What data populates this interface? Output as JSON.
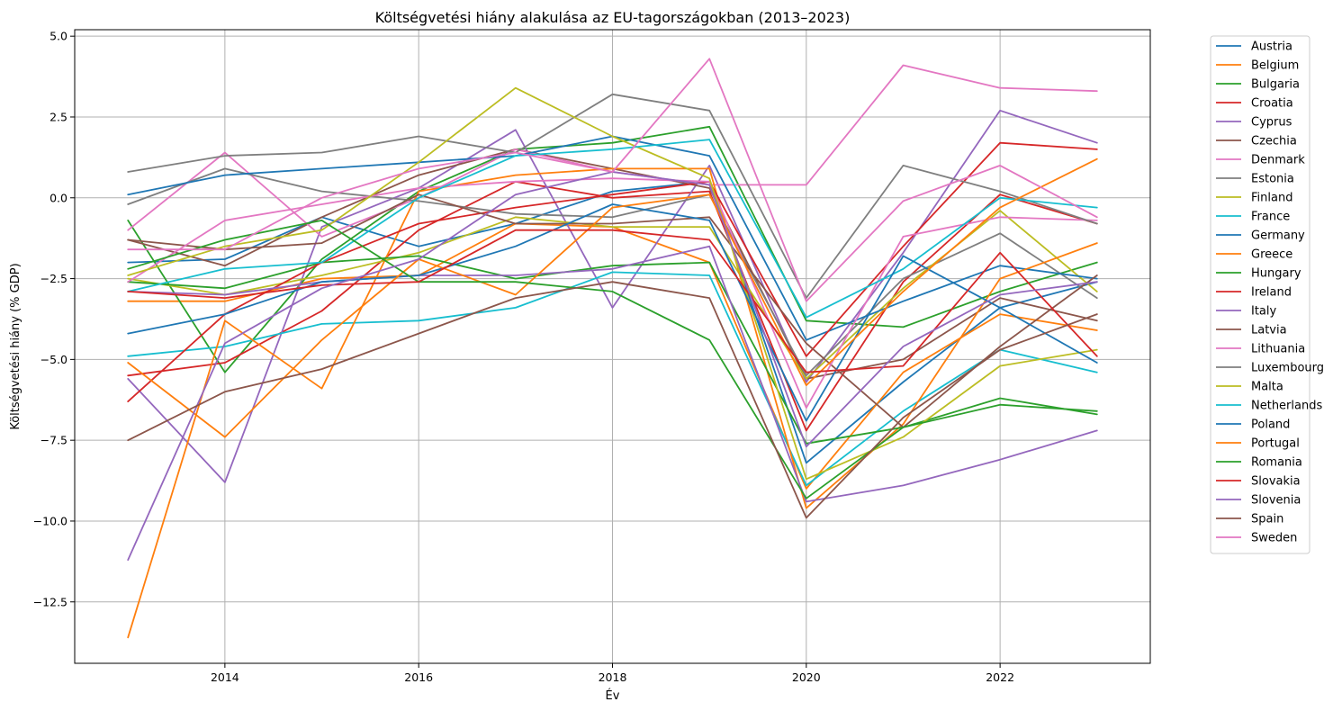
{
  "chart_data": {
    "type": "line",
    "title": "Költségvetési hiány alakulása az EU-tagországokban (2013–2023)",
    "xlabel": "Év",
    "ylabel": "Költségvetési hiány (% GDP)",
    "x": [
      2013,
      2014,
      2015,
      2016,
      2017,
      2018,
      2019,
      2020,
      2021,
      2022,
      2023
    ],
    "xlim": [
      2012.45,
      2023.55
    ],
    "ylim": [
      -14.4,
      5.2
    ],
    "xticks": [
      2014,
      2016,
      2018,
      2020,
      2022
    ],
    "xtick_labels": [
      "2014",
      "2016",
      "2018",
      "2020",
      "2022"
    ],
    "yticks": [
      -12.5,
      -10,
      -7.5,
      -5,
      -2.5,
      0,
      2.5,
      5
    ],
    "ytick_labels": [
      "−12.5",
      "−10.0",
      "−7.5",
      "−5.0",
      "−2.5",
      "0.0",
      "2.5",
      "5.0"
    ],
    "grid": true,
    "legend_position": "outside-right",
    "series": [
      {
        "name": "Austria",
        "color": "#1f77b4",
        "values": [
          -2.0,
          -1.9,
          -0.6,
          -1.5,
          -0.8,
          0.2,
          0.5,
          -8.2,
          -5.7,
          -3.4,
          -2.6
        ]
      },
      {
        "name": "Belgium",
        "color": "#ff7f0e",
        "values": [
          -3.2,
          -3.2,
          -2.5,
          -2.4,
          -0.8,
          -0.9,
          -2.0,
          -9.0,
          -5.4,
          -3.6,
          -4.1
        ]
      },
      {
        "name": "Bulgaria",
        "color": "#2ca02c",
        "values": [
          -0.7,
          -5.4,
          -1.9,
          0.2,
          1.5,
          1.7,
          2.2,
          -3.8,
          -4.0,
          -2.9,
          -2.0
        ]
      },
      {
        "name": "Croatia",
        "color": "#d62728",
        "values": [
          -5.5,
          -5.1,
          -3.5,
          -1.0,
          0.5,
          0.0,
          0.2,
          -7.2,
          -2.6,
          0.1,
          -0.8
        ]
      },
      {
        "name": "Cyprus",
        "color": "#9467bd",
        "values": [
          -5.6,
          -8.8,
          -0.9,
          0.3,
          2.1,
          -3.4,
          1.0,
          -5.7,
          -1.7,
          2.7,
          1.7
        ]
      },
      {
        "name": "Czechia",
        "color": "#8c564b",
        "values": [
          -1.3,
          -2.1,
          -0.6,
          0.7,
          1.5,
          0.9,
          0.3,
          -5.6,
          -5.0,
          -3.1,
          -3.8
        ]
      },
      {
        "name": "Denmark",
        "color": "#e377c2",
        "values": [
          -1.0,
          1.4,
          -1.2,
          0.0,
          1.5,
          0.8,
          0.4,
          0.4,
          4.1,
          3.4,
          3.3
        ]
      },
      {
        "name": "Estonia",
        "color": "#7f7f7f",
        "values": [
          -0.2,
          0.9,
          0.2,
          -0.1,
          -0.5,
          -0.6,
          0.1,
          -5.5,
          -2.5,
          -1.1,
          -3.1
        ]
      },
      {
        "name": "Finland",
        "color": "#bcbd22",
        "values": [
          -2.5,
          -3.0,
          -2.4,
          -1.7,
          -0.6,
          -0.9,
          -0.9,
          -5.6,
          -2.8,
          -0.4,
          -2.9
        ]
      },
      {
        "name": "France",
        "color": "#17becf",
        "values": [
          -4.9,
          -4.6,
          -3.9,
          -3.8,
          -3.4,
          -2.3,
          -2.4,
          -8.9,
          -6.6,
          -4.7,
          -5.4
        ]
      },
      {
        "name": "Germany",
        "color": "#1f77b4",
        "values": [
          0.1,
          0.7,
          0.9,
          1.1,
          1.3,
          1.9,
          1.3,
          -4.4,
          -3.2,
          -2.1,
          -2.5
        ]
      },
      {
        "name": "Greece",
        "color": "#ff7f0e",
        "values": [
          -13.6,
          -3.8,
          -5.9,
          0.2,
          0.7,
          0.9,
          0.9,
          -9.6,
          -7.0,
          -2.5,
          -1.4
        ]
      },
      {
        "name": "Hungary",
        "color": "#2ca02c",
        "values": [
          -2.6,
          -2.8,
          -2.0,
          -1.8,
          -2.5,
          -2.1,
          -2.0,
          -7.6,
          -7.1,
          -6.2,
          -6.7
        ]
      },
      {
        "name": "Ireland",
        "color": "#d62728",
        "values": [
          -6.3,
          -3.6,
          -2.0,
          -0.8,
          -0.3,
          0.1,
          0.5,
          -4.9,
          -1.5,
          1.7,
          1.5
        ]
      },
      {
        "name": "Italy",
        "color": "#9467bd",
        "values": [
          -2.9,
          -3.0,
          -2.6,
          -2.4,
          -2.4,
          -2.2,
          -1.5,
          -9.4,
          -8.9,
          -8.1,
          -7.2
        ]
      },
      {
        "name": "Latvia",
        "color": "#8c564b",
        "values": [
          -1.3,
          -1.6,
          -1.4,
          0.1,
          -0.8,
          -0.8,
          -0.6,
          -4.5,
          -7.1,
          -4.6,
          -2.4
        ]
      },
      {
        "name": "Lithuania",
        "color": "#e377c2",
        "values": [
          -2.6,
          -0.7,
          -0.2,
          0.3,
          0.5,
          0.6,
          0.5,
          -6.5,
          -1.2,
          -0.6,
          -0.7
        ]
      },
      {
        "name": "Luxembourg",
        "color": "#7f7f7f",
        "values": [
          0.8,
          1.3,
          1.4,
          1.9,
          1.4,
          3.2,
          2.7,
          -3.1,
          1.0,
          0.2,
          -0.8
        ]
      },
      {
        "name": "Malta",
        "color": "#bcbd22",
        "values": [
          -2.4,
          -1.5,
          -1.0,
          1.1,
          3.4,
          1.9,
          0.6,
          -8.7,
          -7.4,
          -5.2,
          -4.7
        ]
      },
      {
        "name": "Netherlands",
        "color": "#17becf",
        "values": [
          -2.9,
          -2.2,
          -2.0,
          0.0,
          1.3,
          1.5,
          1.8,
          -3.7,
          -2.2,
          0.0,
          -0.3
        ]
      },
      {
        "name": "Poland",
        "color": "#1f77b4",
        "values": [
          -4.2,
          -3.6,
          -2.6,
          -2.4,
          -1.5,
          -0.2,
          -0.7,
          -6.9,
          -1.8,
          -3.4,
          -5.1
        ]
      },
      {
        "name": "Portugal",
        "color": "#ff7f0e",
        "values": [
          -5.1,
          -7.4,
          -4.4,
          -1.9,
          -3.0,
          -0.3,
          0.1,
          -5.8,
          -2.9,
          -0.3,
          1.2
        ]
      },
      {
        "name": "Romania",
        "color": "#2ca02c",
        "values": [
          -2.2,
          -1.3,
          -0.7,
          -2.6,
          -2.6,
          -2.9,
          -4.4,
          -9.3,
          -7.1,
          -6.4,
          -6.6
        ]
      },
      {
        "name": "Slovakia",
        "color": "#d62728",
        "values": [
          -2.9,
          -3.1,
          -2.7,
          -2.6,
          -1.0,
          -1.0,
          -1.3,
          -5.4,
          -5.2,
          -1.7,
          -4.9
        ]
      },
      {
        "name": "Slovenia",
        "color": "#9467bd",
        "values": [
          -11.2,
          -4.5,
          -2.8,
          -1.9,
          0.1,
          0.8,
          0.4,
          -7.7,
          -4.6,
          -3.0,
          -2.6
        ]
      },
      {
        "name": "Spain",
        "color": "#8c564b",
        "values": [
          -7.5,
          -6.0,
          -5.3,
          -4.2,
          -3.1,
          -2.6,
          -3.1,
          -9.9,
          -6.8,
          -4.7,
          -3.6
        ]
      },
      {
        "name": "Sweden",
        "color": "#e377c2",
        "values": [
          -1.6,
          -1.6,
          0.0,
          0.9,
          1.4,
          0.8,
          4.3,
          -3.2,
          -0.1,
          1.0,
          -0.6
        ]
      }
    ]
  }
}
